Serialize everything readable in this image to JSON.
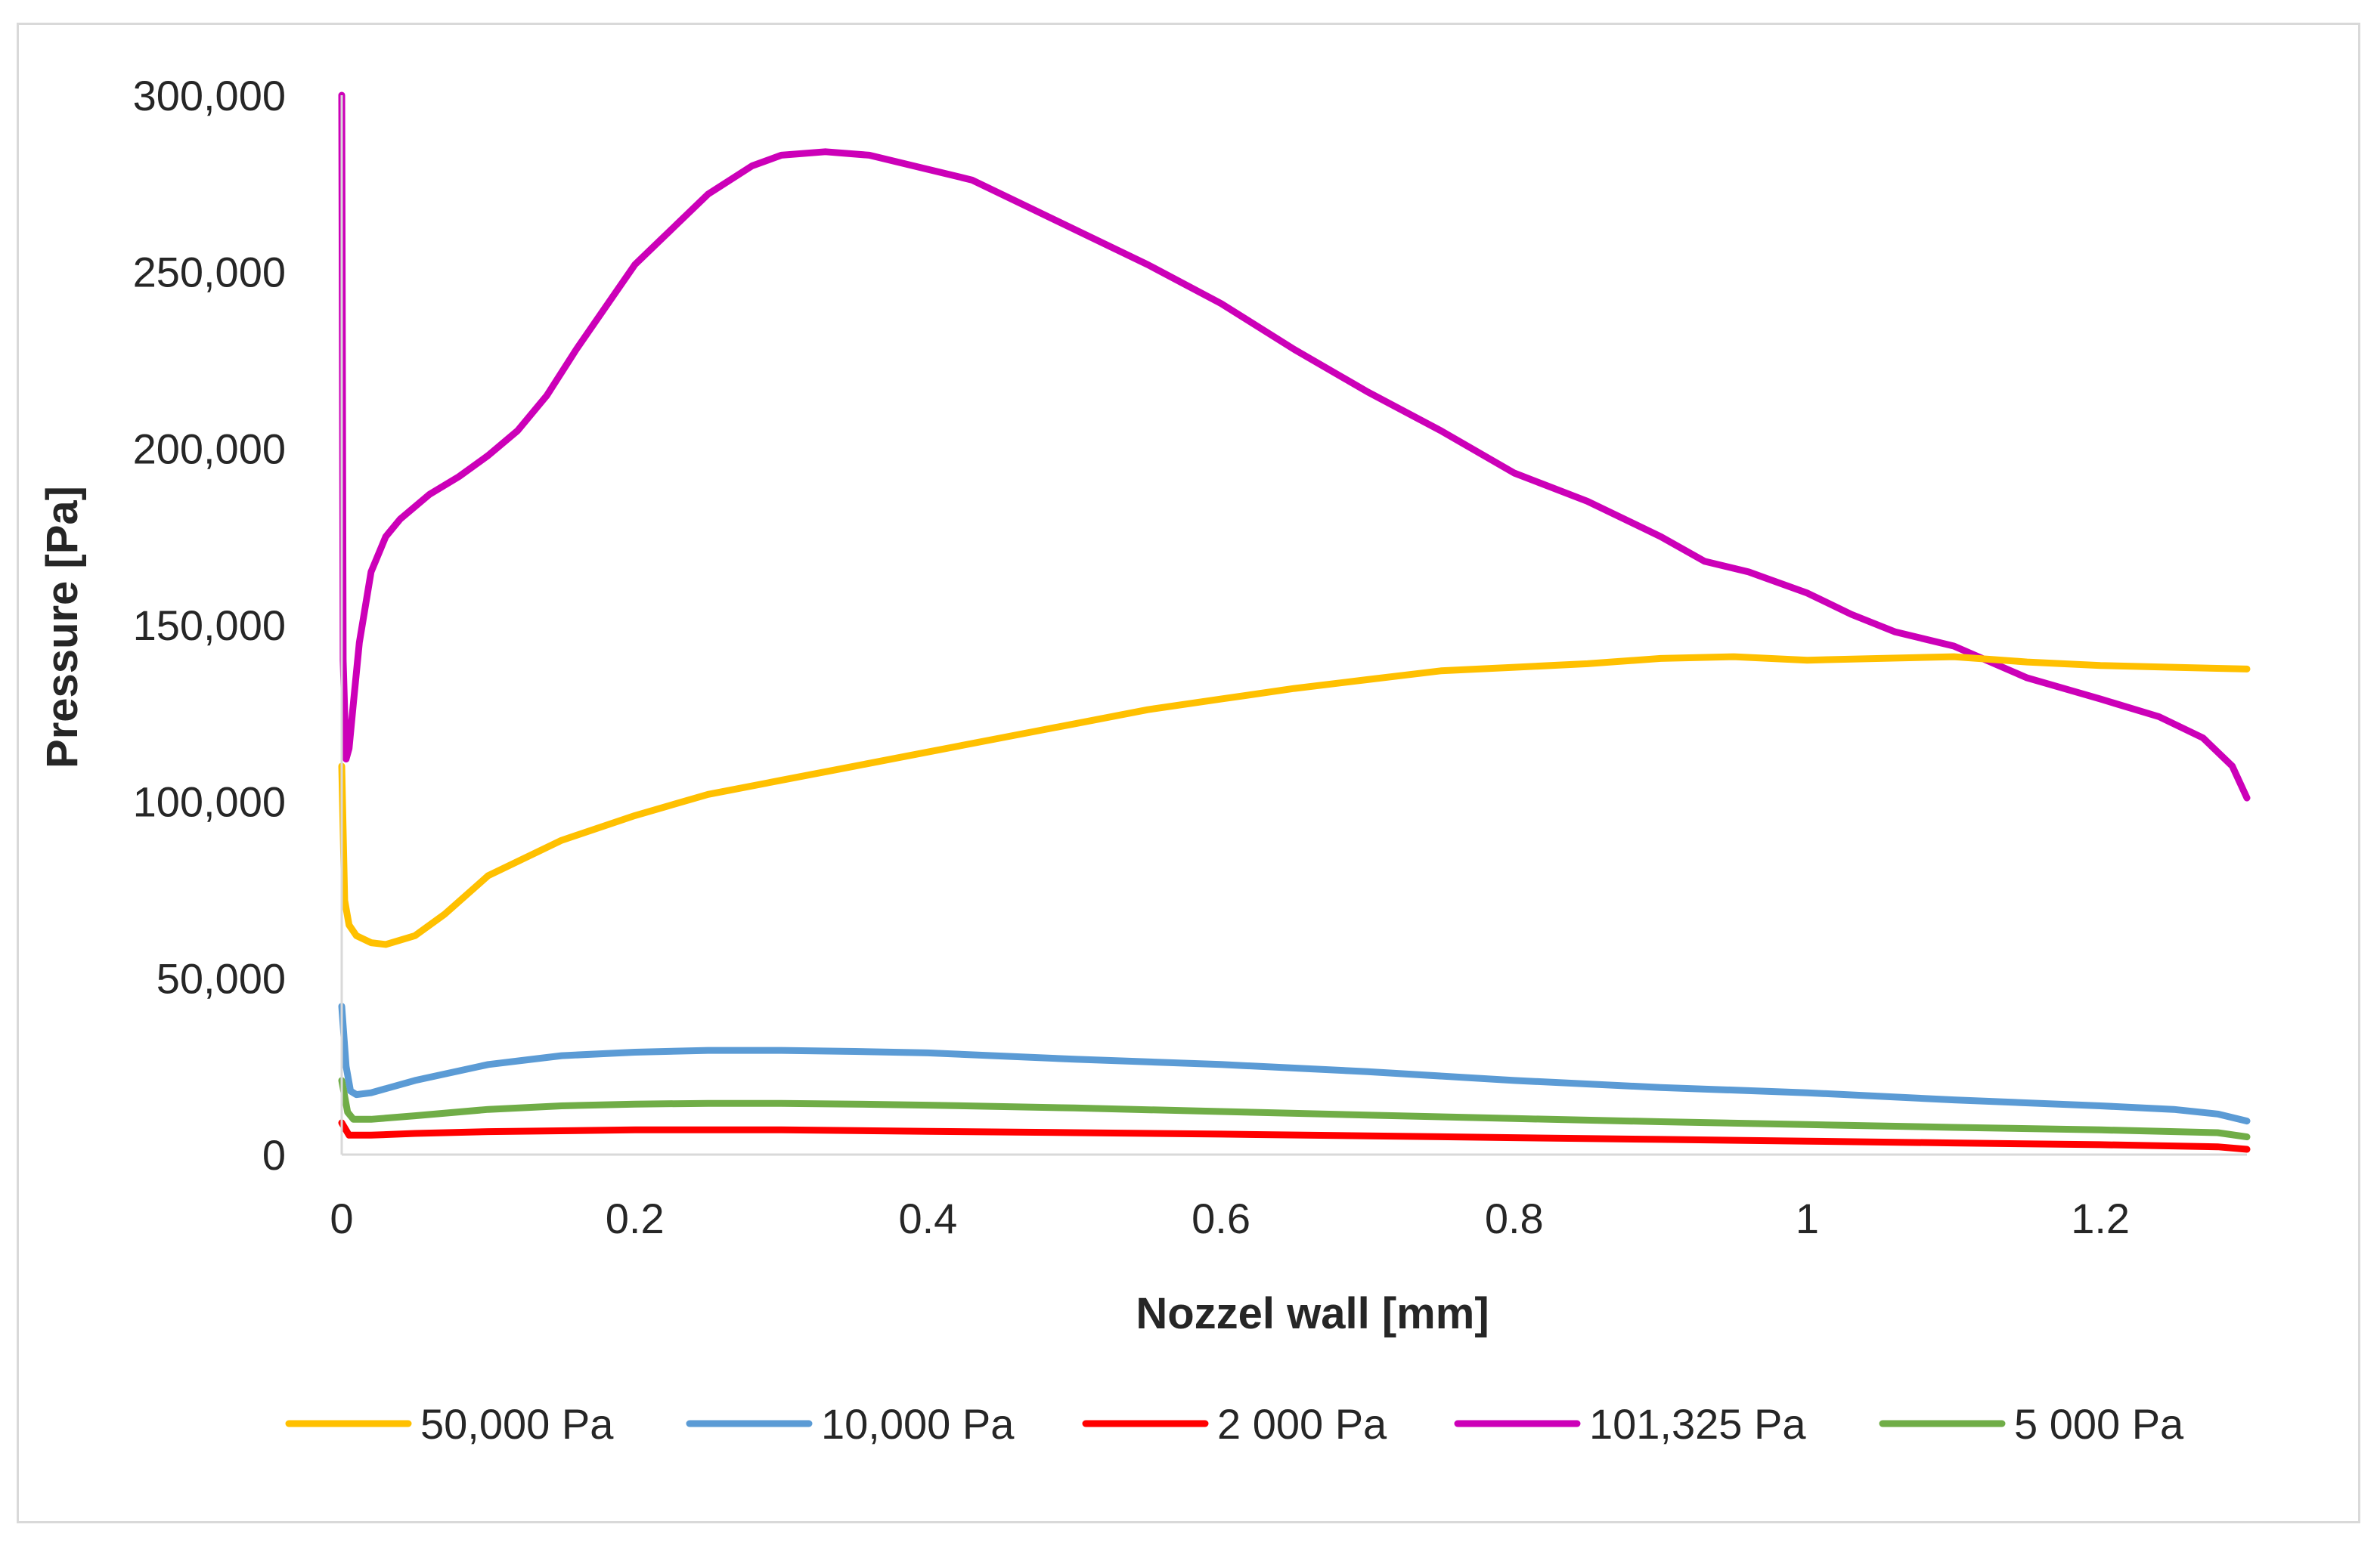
{
  "chart_data": {
    "type": "line",
    "title": "",
    "xlabel": "Nozzel wall [mm]",
    "ylabel": "Pressure [Pa]",
    "xlim": [
      0,
      1.3
    ],
    "ylim": [
      0,
      300000
    ],
    "x_ticks": [
      0,
      0.2,
      0.4,
      0.6,
      0.8,
      1,
      1.2
    ],
    "x_tick_labels": [
      "0",
      "0.2",
      "0.4",
      "0.6",
      "0.8",
      "1",
      "1.2"
    ],
    "y_ticks": [
      0,
      50000,
      100000,
      150000,
      200000,
      250000,
      300000
    ],
    "y_tick_labels": [
      "0",
      "50,000",
      "100,000",
      "150,000",
      "200,000",
      "250,000",
      "300,000"
    ],
    "grid": false,
    "legend_position": "bottom",
    "series": [
      {
        "name": "50,000 Pa",
        "color": "#ffc000",
        "x": [
          0,
          0.002,
          0.005,
          0.01,
          0.02,
          0.03,
          0.05,
          0.07,
          0.1,
          0.15,
          0.2,
          0.25,
          0.3,
          0.35,
          0.4,
          0.45,
          0.5,
          0.55,
          0.6,
          0.65,
          0.7,
          0.75,
          0.8,
          0.85,
          0.9,
          0.95,
          1.0,
          1.05,
          1.1,
          1.15,
          1.2,
          1.25,
          1.3
        ],
        "y": [
          110000,
          72000,
          65000,
          62000,
          60000,
          59500,
          62000,
          68000,
          79000,
          89000,
          96000,
          102000,
          106000,
          110000,
          114000,
          118000,
          122000,
          126000,
          129000,
          132000,
          134500,
          137000,
          138000,
          139000,
          140500,
          141000,
          140000,
          140500,
          141000,
          139500,
          138500,
          138000,
          137500
        ]
      },
      {
        "name": "10,000 Pa",
        "color": "#5b9bd5",
        "x": [
          0,
          0.003,
          0.006,
          0.01,
          0.02,
          0.05,
          0.1,
          0.15,
          0.2,
          0.25,
          0.3,
          0.35,
          0.4,
          0.5,
          0.6,
          0.7,
          0.8,
          0.9,
          1.0,
          1.1,
          1.2,
          1.25,
          1.28,
          1.3
        ],
        "y": [
          42000,
          25000,
          18000,
          17000,
          17500,
          21000,
          25500,
          28000,
          29000,
          29500,
          29500,
          29200,
          28800,
          27000,
          25500,
          23500,
          21000,
          19000,
          17500,
          15500,
          13800,
          12800,
          11500,
          9500
        ]
      },
      {
        "name": "2 000 Pa",
        "color": "#ff0000",
        "x": [
          0,
          0.005,
          0.02,
          0.05,
          0.1,
          0.2,
          0.3,
          0.4,
          0.5,
          0.6,
          0.7,
          0.8,
          0.9,
          1.0,
          1.1,
          1.2,
          1.28,
          1.3
        ],
        "y": [
          9000,
          5500,
          5500,
          6000,
          6500,
          7000,
          7000,
          6600,
          6200,
          5800,
          5300,
          4800,
          4300,
          3800,
          3300,
          2800,
          2200,
          1500
        ]
      },
      {
        "name": "101,325 Pa",
        "color": "#cc00b8",
        "x": [
          0,
          0.001,
          0.003,
          0.005,
          0.008,
          0.012,
          0.02,
          0.03,
          0.04,
          0.06,
          0.08,
          0.1,
          0.12,
          0.14,
          0.16,
          0.18,
          0.2,
          0.22,
          0.25,
          0.28,
          0.3,
          0.33,
          0.36,
          0.4,
          0.43,
          0.46,
          0.5,
          0.55,
          0.6,
          0.65,
          0.7,
          0.75,
          0.8,
          0.85,
          0.9,
          0.93,
          0.96,
          1.0,
          1.03,
          1.06,
          1.1,
          1.15,
          1.2,
          1.24,
          1.27,
          1.29,
          1.3
        ],
        "y": [
          300000,
          140000,
          112000,
          115000,
          128000,
          145000,
          165000,
          175000,
          180000,
          187000,
          192000,
          198000,
          205000,
          215000,
          228000,
          240000,
          252000,
          260000,
          272000,
          280000,
          283000,
          284000,
          283000,
          279000,
          276000,
          270000,
          262000,
          252000,
          241000,
          228000,
          216000,
          205000,
          193000,
          185000,
          175000,
          168000,
          165000,
          159000,
          153000,
          148000,
          144000,
          135000,
          129000,
          124000,
          118000,
          110000,
          101000
        ]
      },
      {
        "name": "5 000 Pa",
        "color": "#70ad47",
        "x": [
          0,
          0.004,
          0.008,
          0.02,
          0.05,
          0.1,
          0.15,
          0.2,
          0.25,
          0.3,
          0.35,
          0.4,
          0.5,
          0.6,
          0.7,
          0.8,
          0.9,
          1.0,
          1.1,
          1.2,
          1.28,
          1.3
        ],
        "y": [
          21000,
          12000,
          10000,
          10000,
          11000,
          12800,
          13800,
          14300,
          14500,
          14500,
          14300,
          14000,
          13200,
          12200,
          11200,
          10200,
          9300,
          8500,
          7700,
          7000,
          6200,
          5000
        ]
      }
    ]
  }
}
